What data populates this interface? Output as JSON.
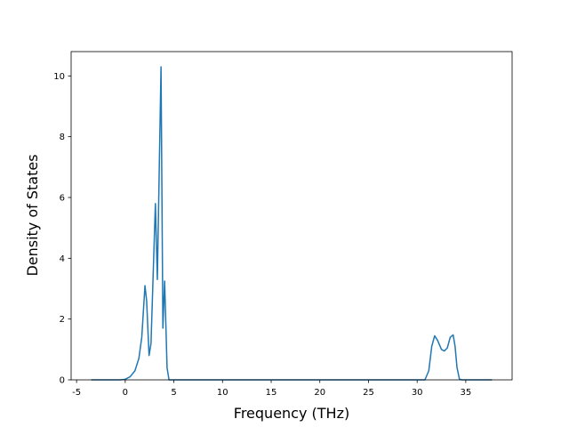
{
  "chart_data": {
    "type": "line",
    "x_label": "Frequency (THz)",
    "y_label": "Density of States",
    "x": [
      -3.5,
      -0.5,
      0,
      0.5,
      1,
      1.4,
      1.7,
      2.03,
      2.2,
      2.45,
      2.65,
      3.1,
      3.3,
      3.68,
      3.87,
      4.05,
      4.3,
      4.5,
      30.8,
      31.2,
      31.5,
      31.8,
      32.1,
      32.5,
      32.8,
      33.1,
      33.4,
      33.7,
      33.9,
      34.1,
      34.35,
      34.6,
      37.7
    ],
    "series": [
      {
        "color": "#1f77b4",
        "values": [
          0,
          0,
          0.02,
          0.1,
          0.3,
          0.7,
          1.4,
          3.1,
          2.6,
          0.8,
          1.2,
          5.8,
          3.3,
          10.3,
          1.7,
          3.25,
          0.4,
          0,
          0,
          0.3,
          1.1,
          1.45,
          1.3,
          1.0,
          0.95,
          1.05,
          1.4,
          1.48,
          1.1,
          0.4,
          0.02,
          0,
          0
        ]
      }
    ],
    "xlim": [
      -5.56,
      39.76
    ],
    "ylim": [
      0,
      10.8
    ],
    "xticks": [
      -5,
      0,
      5,
      10,
      15,
      20,
      25,
      30,
      35
    ],
    "yticks": [
      0,
      2,
      4,
      6,
      8,
      10
    ]
  }
}
